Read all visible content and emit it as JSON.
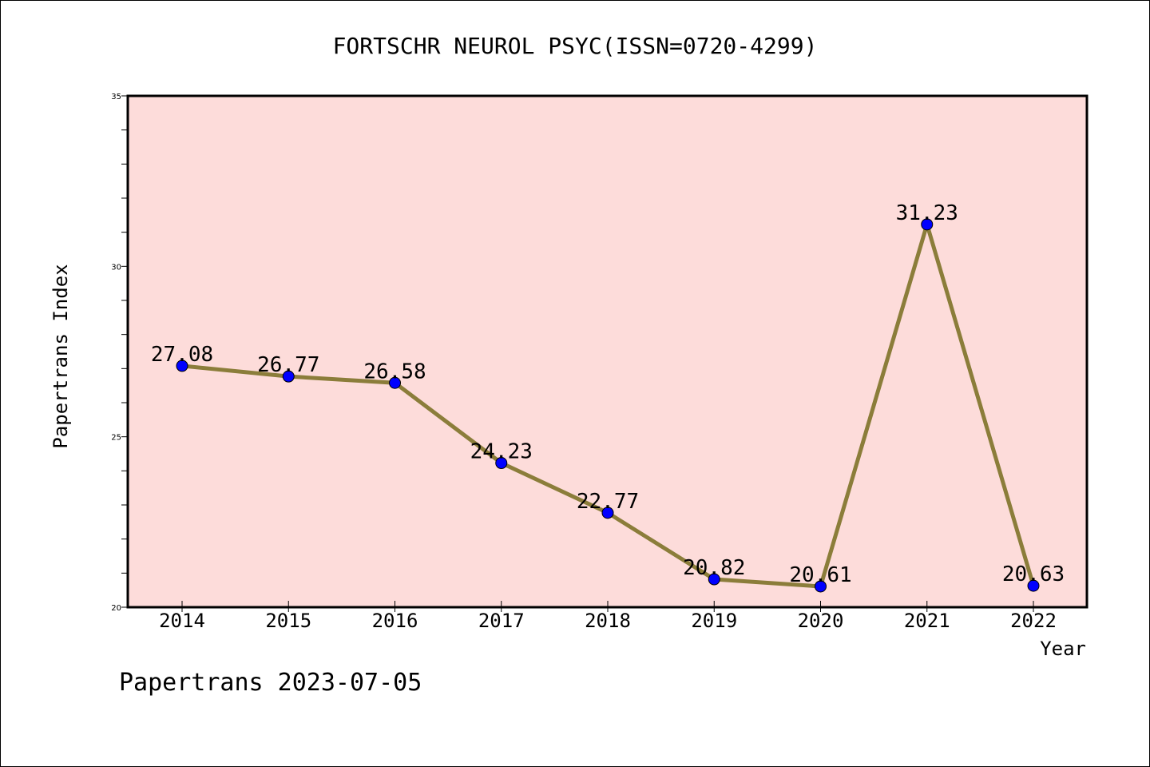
{
  "chart_data": {
    "type": "line",
    "title": "FORTSCHR NEUROL PSYC(ISSN=0720-4299)",
    "xlabel": "Year",
    "ylabel": "Papertrans Index",
    "categories": [
      "2014",
      "2015",
      "2016",
      "2017",
      "2018",
      "2019",
      "2020",
      "2021",
      "2022"
    ],
    "series": [
      {
        "values": [
          27.08,
          26.77,
          26.58,
          24.23,
          22.77,
          20.82,
          20.61,
          31.23,
          20.63
        ],
        "labels": [
          "27.08",
          "26.77",
          "26.58",
          "24.23",
          "22.77",
          "20.82",
          "20.61",
          "31.23",
          "20.63"
        ],
        "line_color": "#8b7d3a",
        "marker_color": "#0000ff"
      }
    ],
    "ylim": [
      20,
      35
    ],
    "yticks": [
      20,
      25,
      30,
      35
    ],
    "yticks_minor_step": 1,
    "grid": false,
    "plot_background": "#fddcda",
    "footer": "Papertrans 2023-07-05"
  }
}
